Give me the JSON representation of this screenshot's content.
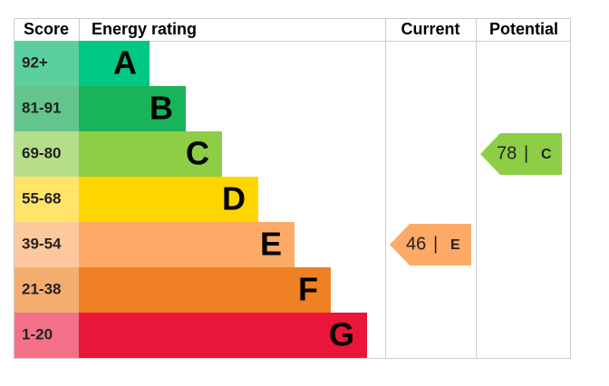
{
  "chart_data": {
    "type": "epc",
    "headers": {
      "score": "Score",
      "rating": "Energy rating",
      "current": "Current",
      "potential": "Potential"
    },
    "bands": [
      {
        "score": "92+",
        "letter": "A",
        "color": "#00c781",
        "score_color": "#5ccfa0"
      },
      {
        "score": "81-91",
        "letter": "B",
        "color": "#19b459",
        "score_color": "#63c58c"
      },
      {
        "score": "69-80",
        "letter": "C",
        "color": "#8dce46",
        "score_color": "#b6de8a"
      },
      {
        "score": "55-68",
        "letter": "D",
        "color": "#ffd500",
        "score_color": "#ffe469"
      },
      {
        "score": "39-54",
        "letter": "E",
        "color": "#fcaa65",
        "score_color": "#fdc89c"
      },
      {
        "score": "21-38",
        "letter": "F",
        "color": "#ef8023",
        "score_color": "#f5ac6f"
      },
      {
        "score": "1-20",
        "letter": "G",
        "color": "#e9153b",
        "score_color": "#f27189"
      }
    ],
    "current": {
      "value": 46,
      "letter": "E",
      "color": "#fcaa65"
    },
    "potential": {
      "value": 78,
      "letter": "C",
      "color": "#8dce46"
    },
    "separator": "|"
  }
}
